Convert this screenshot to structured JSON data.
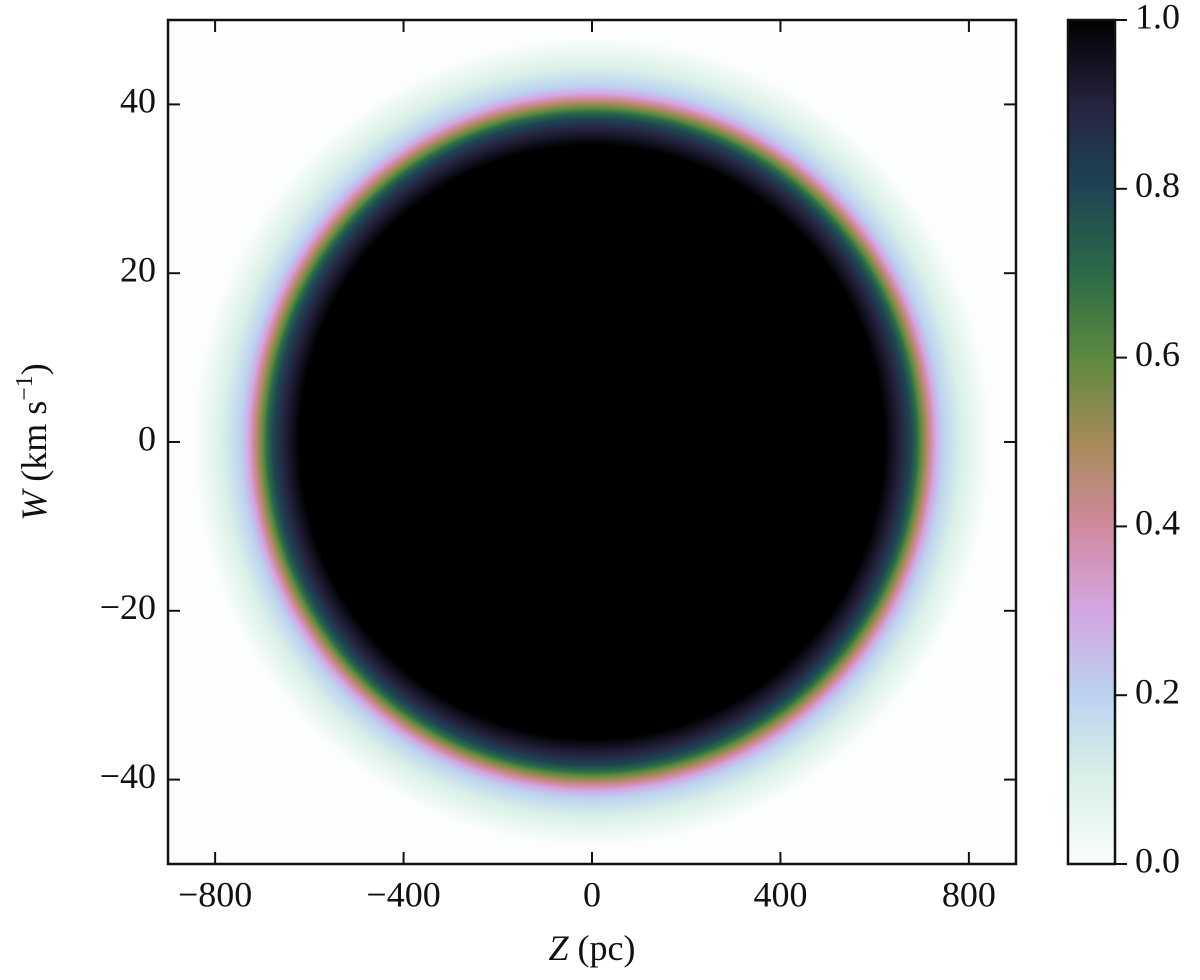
{
  "chart_data": {
    "type": "heatmap",
    "xlabel": {
      "symbol": "Z",
      "unit": "(pc)"
    },
    "ylabel": {
      "symbol": "W",
      "unit": "(km s",
      "power": "−1",
      "close": ")"
    },
    "xlim": [
      -900,
      900
    ],
    "xticks": [
      {
        "value": -800,
        "label": "−800"
      },
      {
        "value": -400,
        "label": "−400"
      },
      0,
      400,
      800
    ],
    "ylim": [
      -50,
      50
    ],
    "yticks": [
      {
        "value": -40,
        "label": "−40"
      },
      {
        "value": -20,
        "label": "−20"
      },
      0,
      20,
      40
    ],
    "clim": [
      0,
      1
    ],
    "cticks": [
      {
        "value": 0,
        "label": "0.0"
      },
      {
        "value": 0.2,
        "label": "0.2"
      },
      {
        "value": 0.4,
        "label": "0.4"
      },
      {
        "value": 0.6,
        "label": "0.6"
      },
      {
        "value": 0.8,
        "label": "0.8"
      },
      {
        "value": 1,
        "label": "1.0"
      }
    ],
    "colormap": [
      "#fbfefb",
      "#daf0e8",
      "#bcd3f0",
      "#d3a6e3",
      "#d08a9e",
      "#a68a59",
      "#5c8a3f",
      "#2a6b46",
      "#1e4555",
      "#25233f",
      "#000000"
    ]
  }
}
